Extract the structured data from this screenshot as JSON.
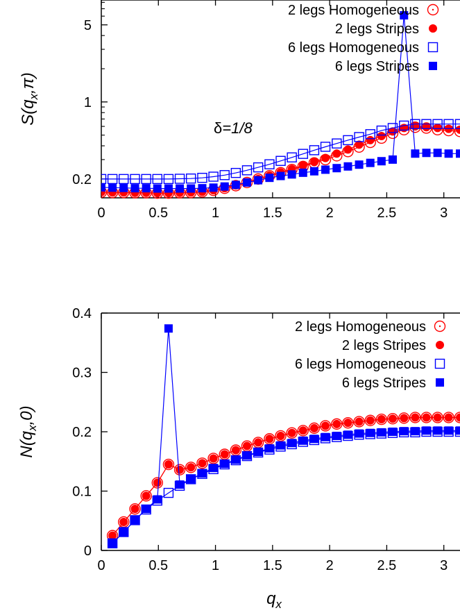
{
  "chart_data": [
    {
      "type": "line",
      "ylabel": "S(q_x,π)",
      "ylabel_parts": {
        "main": "S(q",
        "sub": "x",
        "tail": ",π)"
      },
      "annotation": {
        "greek": "δ",
        "value": "=1/8"
      },
      "yscale": "log",
      "xlim": [
        0,
        3.14159
      ],
      "ylim": [
        0.135,
        8.4
      ],
      "xticks": [
        "0",
        "0.5",
        "1",
        "1.5",
        "2",
        "2.5",
        "3"
      ],
      "yticks": [
        "0.2",
        "1",
        "5"
      ],
      "ytick_values": [
        0.2,
        1,
        5
      ],
      "legend": "top-right",
      "series": [
        {
          "name": "2 legs Homogeneous",
          "marker": "circle-open",
          "color": "#ff0000",
          "x": [
            0,
            0.098,
            0.196,
            0.295,
            0.393,
            0.491,
            0.589,
            0.687,
            0.785,
            0.884,
            0.982,
            1.08,
            1.178,
            1.276,
            1.374,
            1.473,
            1.571,
            1.669,
            1.767,
            1.865,
            1.963,
            2.062,
            2.16,
            2.258,
            2.356,
            2.454,
            2.552,
            2.651,
            2.749,
            2.847,
            2.945,
            3.042,
            3.14159
          ],
          "y": [
            0.152,
            0.151,
            0.151,
            0.15,
            0.15,
            0.149,
            0.149,
            0.15,
            0.151,
            0.153,
            0.158,
            0.165,
            0.174,
            0.186,
            0.2,
            0.214,
            0.228,
            0.244,
            0.26,
            0.28,
            0.3,
            0.325,
            0.355,
            0.39,
            0.43,
            0.47,
            0.52,
            0.56,
            0.59,
            0.58,
            0.56,
            0.55,
            0.54
          ]
        },
        {
          "name": "2 legs Stripes",
          "marker": "circle-filled",
          "color": "#ff0000",
          "x": [
            0,
            0.098,
            0.196,
            0.295,
            0.393,
            0.491,
            0.589,
            0.687,
            0.785,
            0.884,
            0.982,
            1.08,
            1.178,
            1.276,
            1.374,
            1.473,
            1.571,
            1.669,
            1.767,
            1.865,
            1.963,
            2.062,
            2.16,
            2.258,
            2.356,
            2.454,
            2.552,
            2.651,
            2.749,
            2.847,
            2.945,
            3.042,
            3.14159
          ],
          "y": [
            0.152,
            0.151,
            0.151,
            0.15,
            0.15,
            0.149,
            0.149,
            0.15,
            0.151,
            0.153,
            0.158,
            0.165,
            0.175,
            0.187,
            0.2,
            0.215,
            0.23,
            0.246,
            0.265,
            0.285,
            0.31,
            0.34,
            0.37,
            0.41,
            0.45,
            0.49,
            0.54,
            0.58,
            0.6,
            0.59,
            0.58,
            0.57,
            0.56
          ]
        },
        {
          "name": "6 legs Homogeneous",
          "marker": "square-open",
          "color": "#0000ff",
          "x": [
            0,
            0.098,
            0.196,
            0.295,
            0.393,
            0.491,
            0.589,
            0.687,
            0.785,
            0.884,
            0.982,
            1.08,
            1.178,
            1.276,
            1.374,
            1.473,
            1.571,
            1.669,
            1.767,
            1.865,
            1.963,
            2.062,
            2.16,
            2.258,
            2.356,
            2.454,
            2.552,
            2.651,
            2.749,
            2.847,
            2.945,
            3.042,
            3.14159
          ],
          "y": [
            0.2,
            0.2,
            0.2,
            0.2,
            0.2,
            0.2,
            0.2,
            0.201,
            0.202,
            0.205,
            0.21,
            0.217,
            0.227,
            0.24,
            0.255,
            0.272,
            0.292,
            0.314,
            0.338,
            0.365,
            0.392,
            0.42,
            0.45,
            0.48,
            0.51,
            0.55,
            0.58,
            0.61,
            0.63,
            0.63,
            0.63,
            0.63,
            0.63
          ]
        },
        {
          "name": "6 legs Stripes",
          "marker": "square-filled",
          "color": "#0000ff",
          "x": [
            0,
            0.098,
            0.196,
            0.295,
            0.393,
            0.491,
            0.589,
            0.687,
            0.785,
            0.884,
            0.982,
            1.08,
            1.178,
            1.276,
            1.374,
            1.473,
            1.571,
            1.669,
            1.767,
            1.865,
            1.963,
            2.062,
            2.16,
            2.258,
            2.356,
            2.454,
            2.552,
            2.651,
            2.749,
            2.847,
            2.945,
            3.042,
            3.14159
          ],
          "y": [
            0.168,
            0.167,
            0.166,
            0.165,
            0.165,
            0.164,
            0.164,
            0.164,
            0.164,
            0.165,
            0.167,
            0.171,
            0.177,
            0.186,
            0.195,
            0.205,
            0.213,
            0.22,
            0.228,
            0.235,
            0.243,
            0.251,
            0.26,
            0.27,
            0.28,
            0.29,
            0.3,
            6.1,
            0.34,
            0.345,
            0.345,
            0.34,
            0.34
          ]
        }
      ]
    },
    {
      "type": "line",
      "ylabel": "N(q_x,0)",
      "ylabel_parts": {
        "main": "N(q",
        "sub": "x",
        "tail": ",0)"
      },
      "xlabel": "q_x",
      "xlabel_parts": {
        "main": "q",
        "sub": "x"
      },
      "xlim": [
        0,
        3.14159
      ],
      "ylim": [
        0,
        0.4
      ],
      "xticks": [
        "0",
        "0.5",
        "1",
        "1.5",
        "2",
        "2.5",
        "3"
      ],
      "yticks": [
        "0",
        "0.1",
        "0.2",
        "0.3",
        "0.4"
      ],
      "ytick_values": [
        0,
        0.1,
        0.2,
        0.3,
        0.4
      ],
      "legend": "top-right",
      "series": [
        {
          "name": "2 legs Homogeneous",
          "marker": "circle-open",
          "color": "#ff0000",
          "x": [
            0.098,
            0.196,
            0.295,
            0.393,
            0.491,
            0.589,
            0.687,
            0.785,
            0.884,
            0.982,
            1.08,
            1.178,
            1.276,
            1.374,
            1.473,
            1.571,
            1.669,
            1.767,
            1.865,
            1.963,
            2.062,
            2.16,
            2.258,
            2.356,
            2.454,
            2.552,
            2.651,
            2.749,
            2.847,
            2.945,
            3.042,
            3.14159
          ],
          "y": [
            0.025,
            0.048,
            0.07,
            0.092,
            0.114,
            0.145,
            0.136,
            0.14,
            0.147,
            0.155,
            0.162,
            0.169,
            0.176,
            0.182,
            0.188,
            0.193,
            0.198,
            0.202,
            0.206,
            0.21,
            0.213,
            0.215,
            0.217,
            0.219,
            0.221,
            0.222,
            0.223,
            0.224,
            0.224,
            0.224,
            0.224,
            0.224
          ]
        },
        {
          "name": "2 legs Stripes",
          "marker": "circle-filled",
          "color": "#ff0000",
          "x": [
            0.098,
            0.196,
            0.295,
            0.393,
            0.491,
            0.589,
            0.687,
            0.785,
            0.884,
            0.982,
            1.08,
            1.178,
            1.276,
            1.374,
            1.473,
            1.571,
            1.669,
            1.767,
            1.865,
            1.963,
            2.062,
            2.16,
            2.258,
            2.356,
            2.454,
            2.552,
            2.651,
            2.749,
            2.847,
            2.945,
            3.042,
            3.14159
          ],
          "y": [
            0.025,
            0.048,
            0.07,
            0.092,
            0.114,
            0.145,
            0.136,
            0.14,
            0.147,
            0.155,
            0.162,
            0.169,
            0.176,
            0.182,
            0.188,
            0.193,
            0.198,
            0.202,
            0.206,
            0.21,
            0.213,
            0.215,
            0.217,
            0.219,
            0.221,
            0.222,
            0.223,
            0.224,
            0.224,
            0.224,
            0.224,
            0.224
          ]
        },
        {
          "name": "6 legs Homogeneous",
          "marker": "square-open",
          "color": "#0000ff",
          "x": [
            0.098,
            0.196,
            0.295,
            0.393,
            0.491,
            0.589,
            0.687,
            0.785,
            0.884,
            0.982,
            1.08,
            1.178,
            1.276,
            1.374,
            1.473,
            1.571,
            1.669,
            1.767,
            1.865,
            1.963,
            2.062,
            2.16,
            2.258,
            2.356,
            2.454,
            2.552,
            2.651,
            2.749,
            2.847,
            2.945,
            3.042,
            3.14159
          ],
          "y": [
            0.012,
            0.031,
            0.051,
            0.069,
            0.084,
            0.097,
            0.109,
            0.12,
            0.129,
            0.137,
            0.145,
            0.152,
            0.159,
            0.165,
            0.17,
            0.175,
            0.179,
            0.183,
            0.186,
            0.189,
            0.191,
            0.193,
            0.195,
            0.196,
            0.197,
            0.198,
            0.199,
            0.199,
            0.2,
            0.2,
            0.2,
            0.2
          ]
        },
        {
          "name": "6 legs Stripes",
          "marker": "square-filled",
          "color": "#0000ff",
          "x": [
            0.098,
            0.196,
            0.295,
            0.393,
            0.491,
            0.589,
            0.687,
            0.785,
            0.884,
            0.982,
            1.08,
            1.178,
            1.276,
            1.374,
            1.473,
            1.571,
            1.669,
            1.767,
            1.865,
            1.963,
            2.062,
            2.16,
            2.258,
            2.356,
            2.454,
            2.552,
            2.651,
            2.749,
            2.847,
            2.945,
            3.042,
            3.14159
          ],
          "y": [
            0.012,
            0.031,
            0.051,
            0.07,
            0.086,
            0.374,
            0.111,
            0.12,
            0.13,
            0.139,
            0.146,
            0.153,
            0.16,
            0.166,
            0.172,
            0.177,
            0.181,
            0.185,
            0.188,
            0.191,
            0.193,
            0.195,
            0.197,
            0.198,
            0.199,
            0.2,
            0.201,
            0.201,
            0.202,
            0.202,
            0.202,
            0.202
          ]
        }
      ]
    }
  ]
}
